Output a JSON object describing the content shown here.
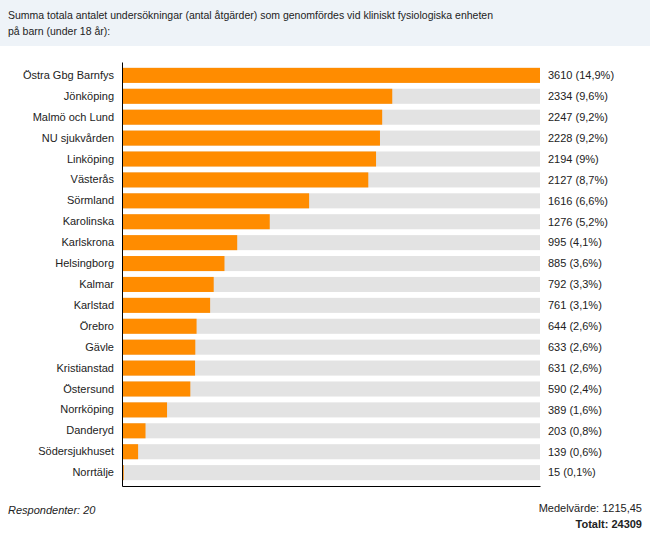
{
  "chart_data": {
    "type": "bar",
    "orientation": "horizontal",
    "title": "Summa totala antalet undersökningar (antal åtgärder) som genomfördes vid kliniskt fysiologiska enheten",
    "subtitle": "på barn (under 18 år):",
    "categories": [
      "Östra Gbg Barnfys",
      "Jönköping",
      "Malmö och Lund",
      "NU sjukvården",
      "Linköping",
      "Västerås",
      "Sörmland",
      "Karolinska",
      "Karlskrona",
      "Helsingborg",
      "Kalmar",
      "Karlstad",
      "Örebro",
      "Gävle",
      "Kristianstad",
      "Östersund",
      "Norrköping",
      "Danderyd",
      "Södersjukhuset",
      "Norrtälje"
    ],
    "values": [
      3610,
      2334,
      2247,
      2228,
      2194,
      2127,
      1616,
      1276,
      995,
      885,
      792,
      761,
      644,
      633,
      631,
      590,
      389,
      203,
      139,
      15
    ],
    "value_labels": [
      "3610 (14,9%)",
      "2334 (9,6%)",
      "2247 (9,2%)",
      "2228 (9,2%)",
      "2194 (9%)",
      "2127 (8,7%)",
      "1616 (6,6%)",
      "1276 (5,2%)",
      "995 (4,1%)",
      "885 (3,6%)",
      "792 (3,3%)",
      "761 (3,1%)",
      "644 (2,6%)",
      "633 (2,6%)",
      "631 (2,6%)",
      "590 (2,4%)",
      "389 (1,6%)",
      "203 (0,8%)",
      "139 (0,6%)",
      "15 (0,1%)"
    ],
    "data_labels": true,
    "color": "#FF8C00",
    "xlim": [
      0,
      3610
    ],
    "tick_labels": "y",
    "grid": false,
    "annotations": [
      "Respondenter: 20",
      "Medelvärde: 1215,45",
      "Totalt: 24309"
    ]
  }
}
